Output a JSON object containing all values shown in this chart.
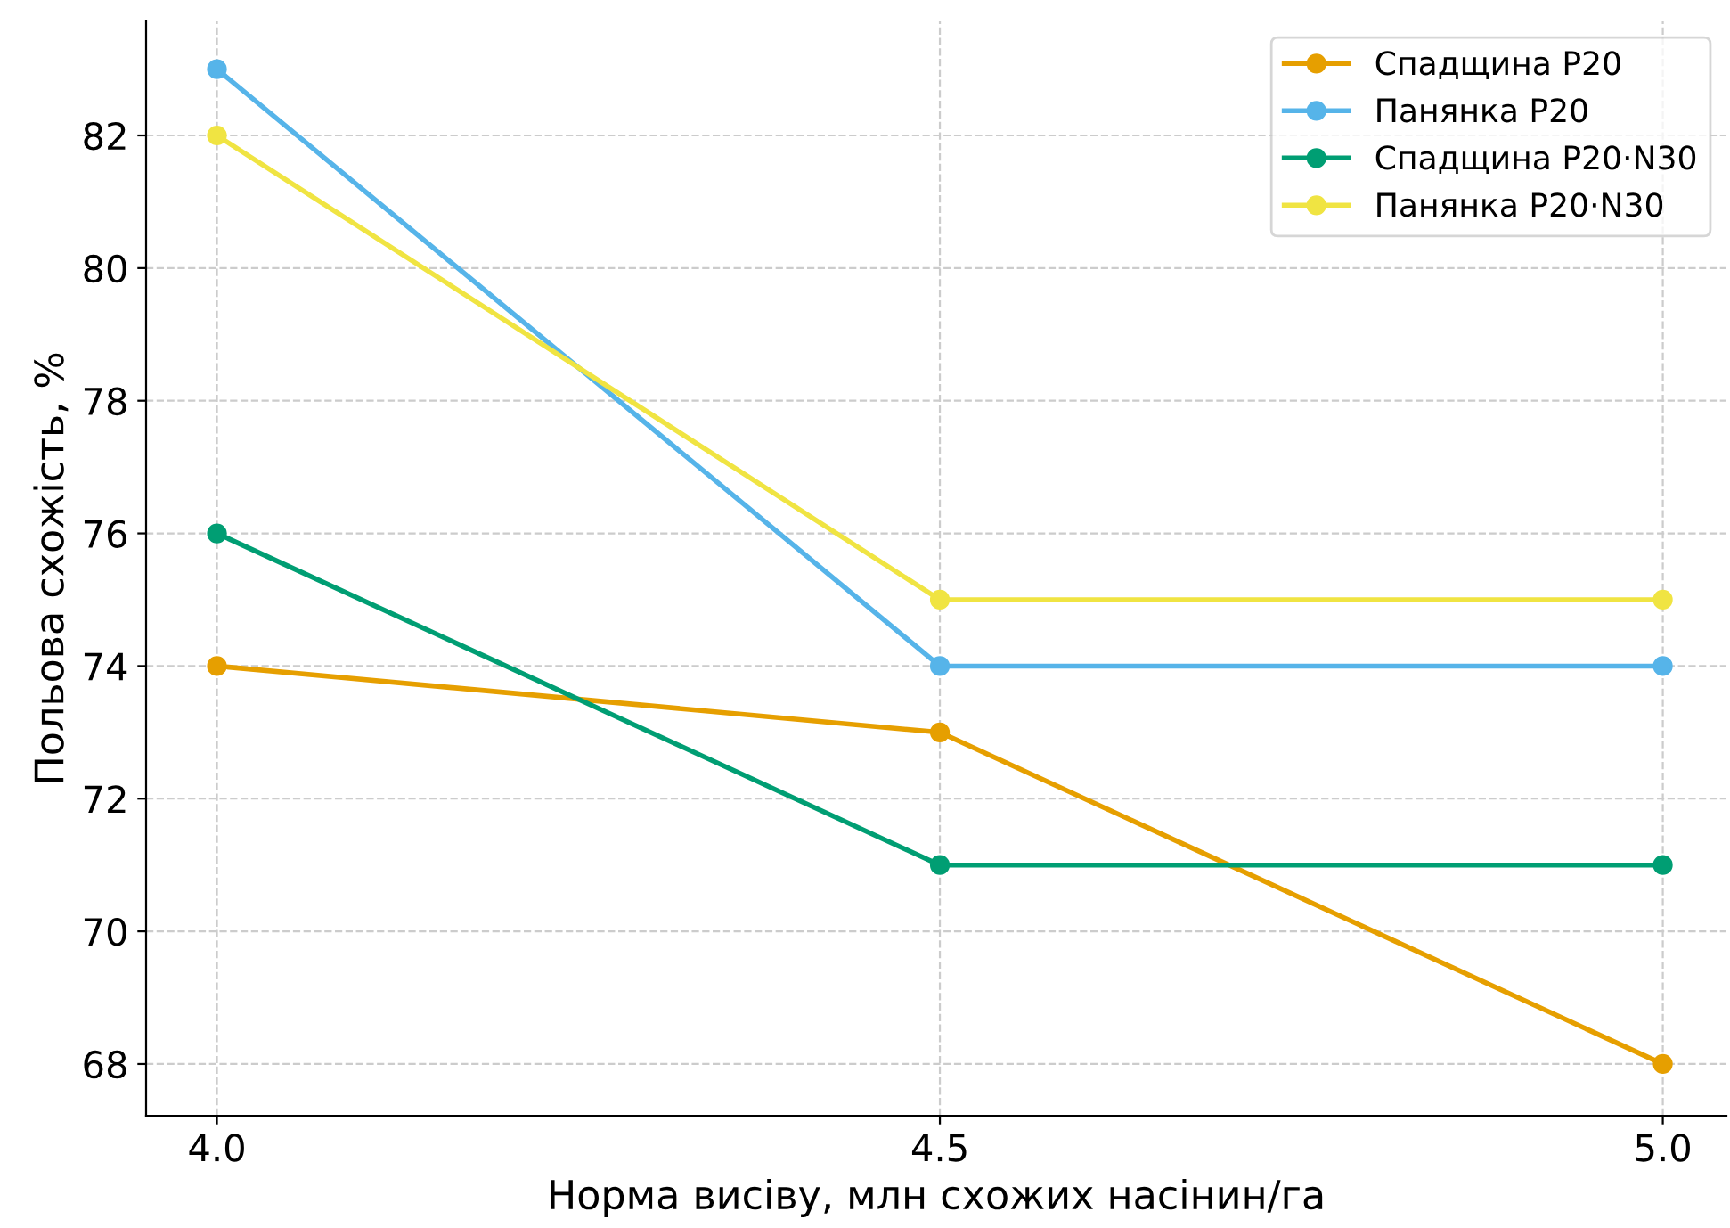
{
  "chart_data": {
    "type": "line",
    "xlabel": "Норма висіву, млн схожих насінин/га",
    "ylabel": "Польова схожість, %",
    "x": [
      4.0,
      4.5,
      5.0
    ],
    "series": [
      {
        "name": "Спадщина P20",
        "color": "#e69f00",
        "values": [
          74,
          73,
          68
        ]
      },
      {
        "name": "Панянка P20",
        "color": "#56b4e9",
        "values": [
          83,
          74,
          74
        ]
      },
      {
        "name": "Спадщина P20·N30",
        "color": "#009e73",
        "values": [
          76,
          71,
          71
        ]
      },
      {
        "name": "Панянка P20·N30",
        "color": "#f0e442",
        "values": [
          82,
          75,
          75
        ]
      }
    ],
    "xlim": [
      3.951,
      5.044
    ],
    "xticks": [
      {
        "value": 4.0,
        "label": "4.0"
      },
      {
        "value": 4.5,
        "label": "4.5"
      },
      {
        "value": 5.0,
        "label": "5.0"
      }
    ],
    "ylim": [
      67.22,
      83.72
    ],
    "yticks": [
      68,
      70,
      72,
      74,
      76,
      78,
      80,
      82
    ],
    "grid": true,
    "legend": "top right",
    "marker": "circle",
    "line_style": "solid"
  }
}
